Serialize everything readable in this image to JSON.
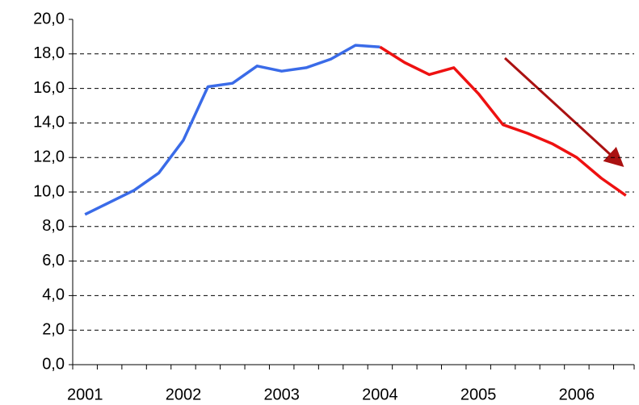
{
  "chart_data": {
    "type": "line",
    "categories": [
      "2001",
      null,
      null,
      null,
      "2002",
      null,
      null,
      null,
      "2003",
      null,
      null,
      null,
      "2004",
      null,
      null,
      null,
      "2005",
      null,
      null,
      null,
      "2006",
      null,
      null
    ],
    "series": [
      {
        "color": "#3a6be8",
        "values": [
          8.7,
          9.4,
          10.1,
          11.1,
          13.0,
          16.1,
          16.3,
          17.3,
          17.0,
          17.2,
          17.7,
          18.5,
          18.4,
          null,
          null,
          null,
          null,
          null,
          null,
          null,
          null,
          null,
          null
        ]
      },
      {
        "color": "#ee1111",
        "values": [
          null,
          null,
          null,
          null,
          null,
          null,
          null,
          null,
          null,
          null,
          null,
          null,
          18.4,
          17.5,
          16.8,
          17.2,
          15.7,
          13.9,
          13.4,
          12.8,
          12.0,
          10.8,
          9.8
        ]
      }
    ],
    "ylim": [
      0,
      20
    ],
    "yticks": [
      {
        "value": 0,
        "label": "0,0"
      },
      {
        "value": 2,
        "label": "2,0"
      },
      {
        "value": 4,
        "label": "4,0"
      },
      {
        "value": 6,
        "label": "6,0"
      },
      {
        "value": 8,
        "label": "8,0"
      },
      {
        "value": 10,
        "label": "10,0"
      },
      {
        "value": 12,
        "label": "12,0"
      },
      {
        "value": 14,
        "label": "14,0"
      },
      {
        "value": 16,
        "label": "16,0"
      },
      {
        "value": 18,
        "label": "18,0"
      },
      {
        "value": 20,
        "label": "20,0"
      }
    ],
    "grid": true
  }
}
